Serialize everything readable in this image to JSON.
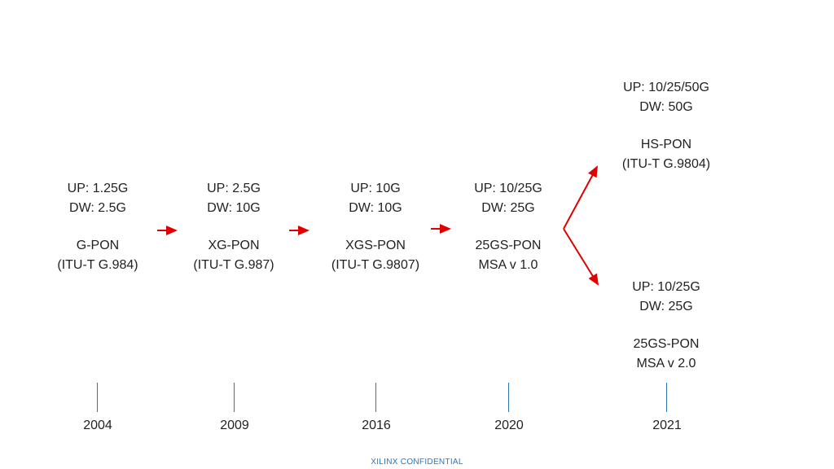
{
  "colors": {
    "arrow": "#e00000",
    "tick": "#2e75b6",
    "footer": "#2e75b6"
  },
  "nodes": [
    {
      "up": "UP: 1.25G",
      "dw": "DW: 2.5G",
      "name": "G-PON",
      "standard": "(ITU-T G.984)"
    },
    {
      "up": "UP: 2.5G",
      "dw": "DW: 10G",
      "name": "XG-PON",
      "standard": "(ITU-T G.987)"
    },
    {
      "up": "UP: 10G",
      "dw": "DW: 10G",
      "name": "XGS-PON",
      "standard": "(ITU-T G.9807)"
    },
    {
      "up": "UP: 10/25G",
      "dw": "DW: 25G",
      "name": "25GS-PON",
      "standard": "MSA v 1.0"
    },
    {
      "up": "UP: 10/25/50G",
      "dw": "DW: 50G",
      "name": "HS-PON",
      "standard": "(ITU-T G.9804)"
    },
    {
      "up": "UP: 10/25G",
      "dw": "DW: 25G",
      "name": "25GS-PON",
      "standard": "MSA v 2.0"
    }
  ],
  "years": [
    "2004",
    "2009",
    "2016",
    "2020",
    "2021"
  ],
  "footer": "XILINX  CONFIDENTIAL"
}
